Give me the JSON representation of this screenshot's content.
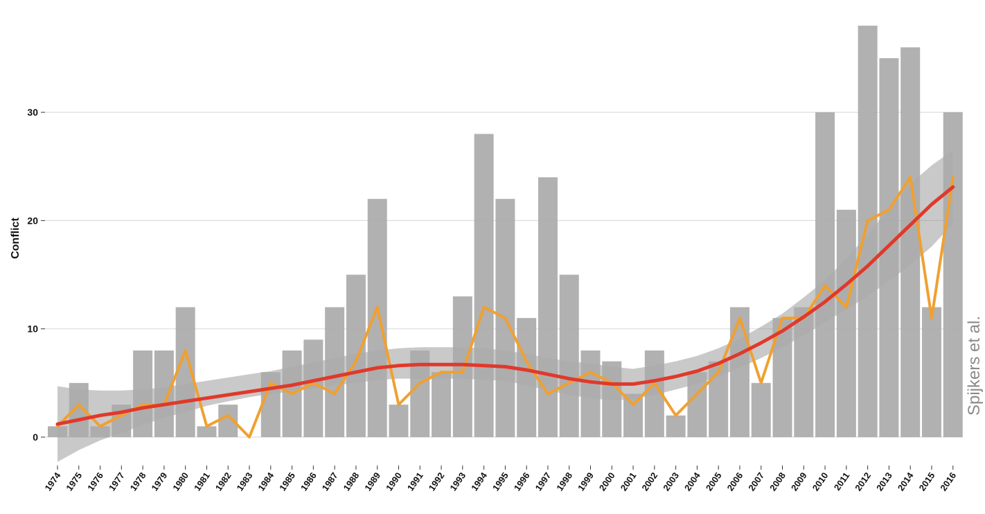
{
  "chart_data": {
    "type": "bar",
    "ylabel": "Conflict",
    "xlabel": "",
    "ylim": [
      0,
      38
    ],
    "yticks": [
      0,
      10,
      20,
      30
    ],
    "grid": true,
    "credit": "Spijkers et al.",
    "categories": [
      "1974",
      "1975",
      "1976",
      "1977",
      "1978",
      "1979",
      "1980",
      "1981",
      "1982",
      "1983",
      "1984",
      "1985",
      "1986",
      "1987",
      "1988",
      "1989",
      "1990",
      "1991",
      "1992",
      "1993",
      "1994",
      "1995",
      "1996",
      "1997",
      "1998",
      "1999",
      "2000",
      "2001",
      "2002",
      "2003",
      "2004",
      "2005",
      "2006",
      "2007",
      "2008",
      "2009",
      "2010",
      "2011",
      "2012",
      "2013",
      "2014",
      "2015",
      "2016"
    ],
    "series": [
      {
        "kind": "bar",
        "color": "#aaaaaa",
        "values": [
          1,
          5,
          1,
          3,
          8,
          8,
          12,
          1,
          3,
          0,
          6,
          8,
          9,
          12,
          15,
          22,
          3,
          8,
          6,
          13,
          28,
          22,
          11,
          24,
          15,
          8,
          7,
          4,
          8,
          2,
          6,
          7,
          12,
          5,
          11,
          12,
          30,
          21,
          38,
          35,
          36,
          12,
          30
        ]
      },
      {
        "kind": "line",
        "color": "#f0a030",
        "values": [
          1,
          3,
          1,
          2,
          3,
          3,
          8,
          1,
          2,
          0,
          5,
          4,
          5,
          4,
          7,
          12,
          3,
          5,
          6,
          6,
          12,
          11,
          7,
          4,
          5,
          6,
          5,
          3,
          5,
          2,
          4,
          6,
          11,
          5,
          11,
          11,
          14,
          12,
          20,
          21,
          24,
          11,
          24
        ]
      },
      {
        "kind": "smooth",
        "color": "#e0392b",
        "band_color": "#888888",
        "values": [
          1.2,
          1.6,
          2.0,
          2.3,
          2.7,
          3.0,
          3.3,
          3.6,
          3.9,
          4.2,
          4.5,
          4.8,
          5.2,
          5.6,
          6.0,
          6.4,
          6.6,
          6.7,
          6.7,
          6.7,
          6.6,
          6.5,
          6.2,
          5.8,
          5.4,
          5.1,
          4.9,
          4.9,
          5.2,
          5.6,
          6.1,
          6.8,
          7.7,
          8.7,
          9.8,
          11.1,
          12.5,
          14.1,
          15.8,
          17.7,
          19.6,
          21.5,
          23.1
        ],
        "lower": [
          -2.3,
          -1.2,
          -0.3,
          0.4,
          1.1,
          1.8,
          2.3,
          2.9,
          3.3,
          3.7,
          4.0,
          4.2,
          4.5,
          4.8,
          5.0,
          5.3,
          5.4,
          5.4,
          5.4,
          5.4,
          5.3,
          5.2,
          4.8,
          4.3,
          3.9,
          3.6,
          3.4,
          3.5,
          3.9,
          4.4,
          4.9,
          5.6,
          6.4,
          7.3,
          8.3,
          9.4,
          10.6,
          11.8,
          13.0,
          14.4,
          15.9,
          17.6,
          19.7
        ],
        "upper": [
          4.7,
          4.4,
          4.3,
          4.3,
          4.4,
          4.6,
          4.9,
          5.2,
          5.5,
          5.8,
          6.1,
          6.5,
          6.9,
          7.3,
          7.7,
          8.0,
          8.2,
          8.3,
          8.3,
          8.3,
          8.2,
          8.0,
          7.7,
          7.3,
          7.0,
          6.8,
          6.5,
          6.3,
          6.6,
          7.0,
          7.5,
          8.2,
          9.1,
          10.2,
          11.4,
          12.9,
          14.5,
          16.5,
          18.7,
          21.1,
          23.4,
          25.1,
          26.5
        ]
      }
    ]
  }
}
